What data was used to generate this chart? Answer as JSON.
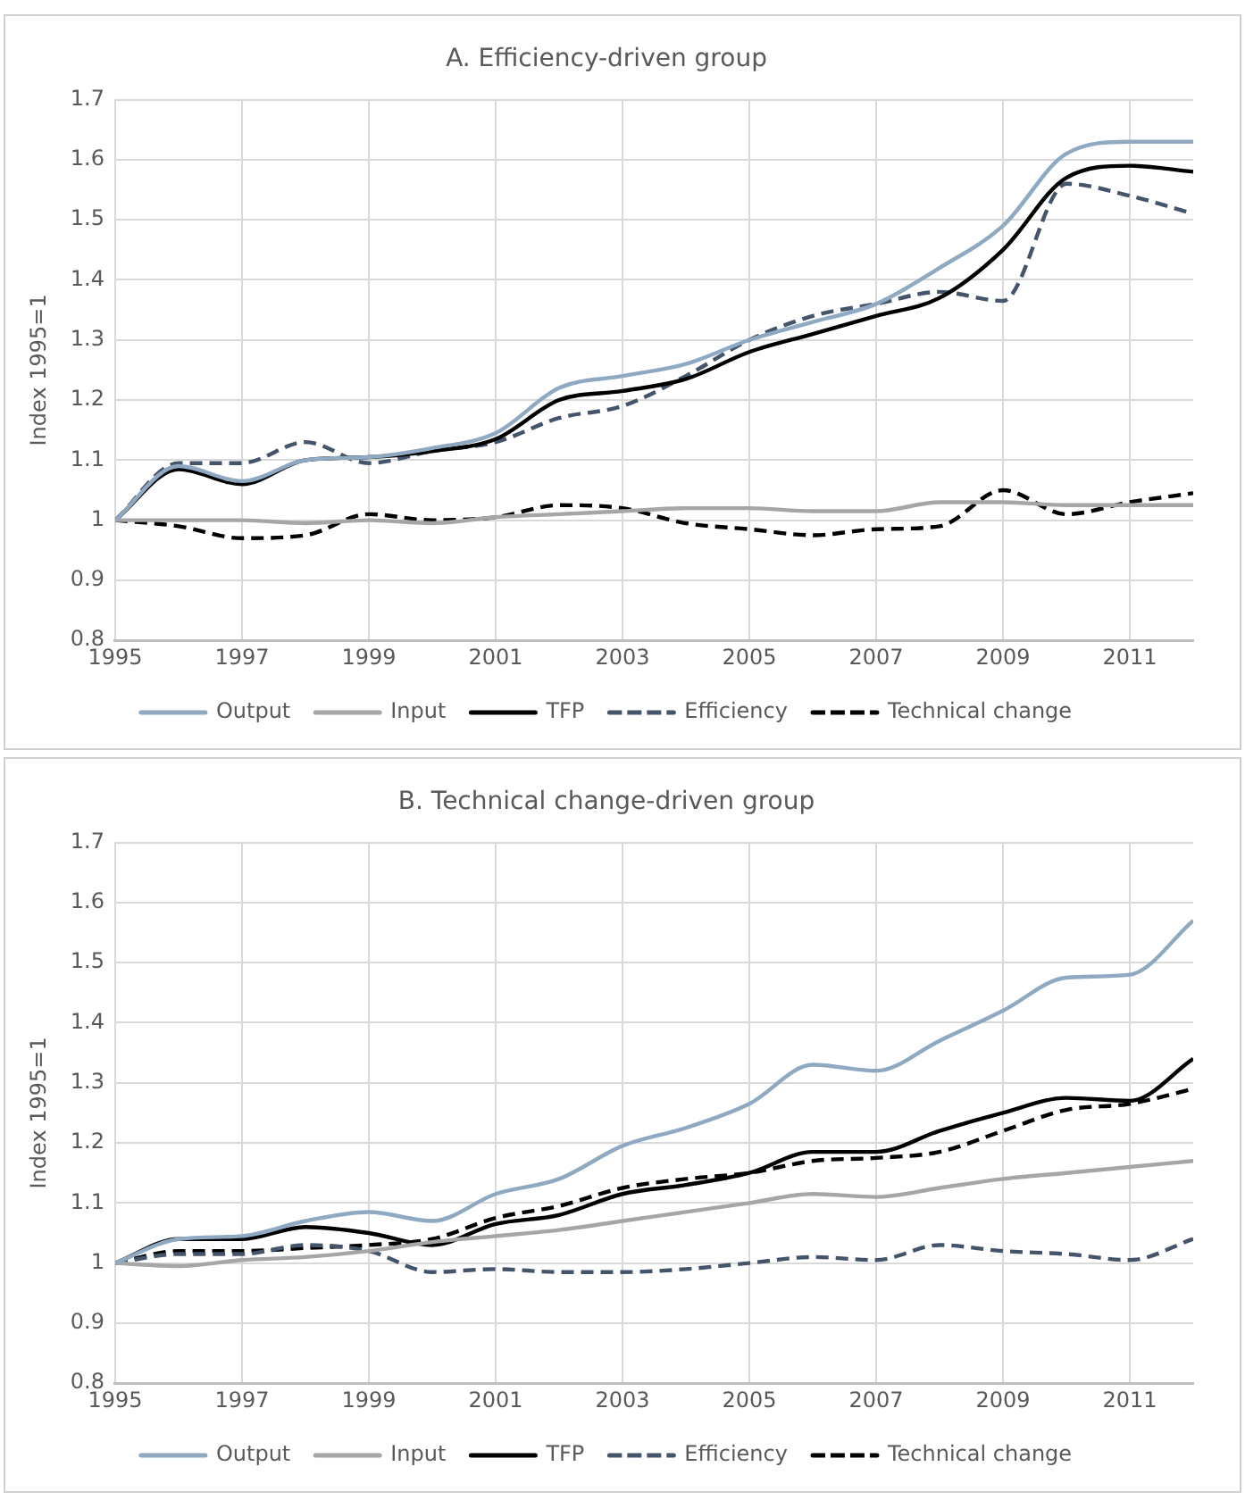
{
  "chart_data": [
    {
      "type": "line",
      "title": "A. Efficiency-driven group",
      "ylabel": "Index 1995=1",
      "x": [
        1995,
        1996,
        1997,
        1998,
        1999,
        2000,
        2001,
        2002,
        2003,
        2004,
        2005,
        2006,
        2007,
        2008,
        2009,
        2010,
        2011,
        2012
      ],
      "xlim": [
        1995,
        2012
      ],
      "xticks": [
        1995,
        1997,
        1999,
        2001,
        2003,
        2005,
        2007,
        2009,
        2011
      ],
      "ylim": [
        0.8,
        1.7
      ],
      "yticks": [
        0.8,
        0.9,
        1,
        1.1,
        1.2,
        1.3,
        1.4,
        1.5,
        1.6,
        1.7
      ],
      "grid": true,
      "legend": "bottom",
      "marker": "none",
      "series": [
        {
          "name": "Output",
          "color": "#8ea9c1",
          "line_style": "solid",
          "values": [
            1.0,
            1.09,
            1.065,
            1.1,
            1.105,
            1.12,
            1.145,
            1.22,
            1.24,
            1.26,
            1.3,
            1.33,
            1.36,
            1.42,
            1.49,
            1.61,
            1.63,
            1.63
          ]
        },
        {
          "name": "Input",
          "color": "#a6a6a6",
          "line_style": "solid",
          "values": [
            1.0,
            1.0,
            1.0,
            0.995,
            1.0,
            0.995,
            1.005,
            1.01,
            1.015,
            1.02,
            1.02,
            1.015,
            1.015,
            1.03,
            1.03,
            1.025,
            1.025,
            1.025
          ]
        },
        {
          "name": "TFP",
          "color": "#000000",
          "line_style": "solid",
          "values": [
            1.0,
            1.085,
            1.06,
            1.1,
            1.105,
            1.115,
            1.135,
            1.2,
            1.215,
            1.235,
            1.28,
            1.31,
            1.34,
            1.37,
            1.45,
            1.57,
            1.59,
            1.58
          ]
        },
        {
          "name": "Efficiency",
          "color": "#44546a",
          "line_style": "dashed",
          "values": [
            1.0,
            1.095,
            1.095,
            1.13,
            1.095,
            1.115,
            1.13,
            1.17,
            1.19,
            1.24,
            1.3,
            1.34,
            1.36,
            1.38,
            1.365,
            1.56,
            1.54,
            1.51
          ]
        },
        {
          "name": "Technical change",
          "color": "#000000",
          "line_style": "dashed",
          "values": [
            1.0,
            0.99,
            0.97,
            0.975,
            1.01,
            1.0,
            1.005,
            1.025,
            1.02,
            0.995,
            0.985,
            0.975,
            0.985,
            0.99,
            1.05,
            1.01,
            1.03,
            1.045
          ]
        }
      ]
    },
    {
      "type": "line",
      "title": "B. Technical change-driven group",
      "ylabel": "Index 1995=1",
      "x": [
        1995,
        1996,
        1997,
        1998,
        1999,
        2000,
        2001,
        2002,
        2003,
        2004,
        2005,
        2006,
        2007,
        2008,
        2009,
        2010,
        2011,
        2012
      ],
      "xlim": [
        1995,
        2012
      ],
      "xticks": [
        1995,
        1997,
        1999,
        2001,
        2003,
        2005,
        2007,
        2009,
        2011
      ],
      "ylim": [
        0.8,
        1.7
      ],
      "yticks": [
        0.8,
        0.9,
        1,
        1.1,
        1.2,
        1.3,
        1.4,
        1.5,
        1.6,
        1.7
      ],
      "grid": true,
      "legend": "bottom",
      "marker": "none",
      "series": [
        {
          "name": "Output",
          "color": "#8ea9c1",
          "line_style": "solid",
          "values": [
            1.0,
            1.04,
            1.045,
            1.07,
            1.085,
            1.07,
            1.115,
            1.14,
            1.195,
            1.225,
            1.265,
            1.33,
            1.32,
            1.37,
            1.42,
            1.475,
            1.48,
            1.57
          ]
        },
        {
          "name": "Input",
          "color": "#a6a6a6",
          "line_style": "solid",
          "values": [
            1.0,
            0.995,
            1.005,
            1.01,
            1.02,
            1.035,
            1.045,
            1.055,
            1.07,
            1.085,
            1.1,
            1.115,
            1.11,
            1.125,
            1.14,
            1.15,
            1.16,
            1.17
          ]
        },
        {
          "name": "TFP",
          "color": "#000000",
          "line_style": "solid",
          "values": [
            1.0,
            1.04,
            1.04,
            1.06,
            1.05,
            1.03,
            1.065,
            1.08,
            1.115,
            1.13,
            1.15,
            1.185,
            1.185,
            1.22,
            1.25,
            1.275,
            1.27,
            1.34
          ]
        },
        {
          "name": "Efficiency",
          "color": "#44546a",
          "line_style": "dashed",
          "values": [
            1.0,
            1.015,
            1.015,
            1.03,
            1.02,
            0.985,
            0.99,
            0.985,
            0.985,
            0.99,
            1.0,
            1.01,
            1.005,
            1.03,
            1.02,
            1.015,
            1.005,
            1.04
          ]
        },
        {
          "name": "Technical change",
          "color": "#000000",
          "line_style": "dashed",
          "values": [
            1.0,
            1.02,
            1.02,
            1.025,
            1.03,
            1.04,
            1.075,
            1.095,
            1.125,
            1.14,
            1.15,
            1.17,
            1.175,
            1.185,
            1.22,
            1.255,
            1.265,
            1.29
          ]
        }
      ]
    }
  ]
}
